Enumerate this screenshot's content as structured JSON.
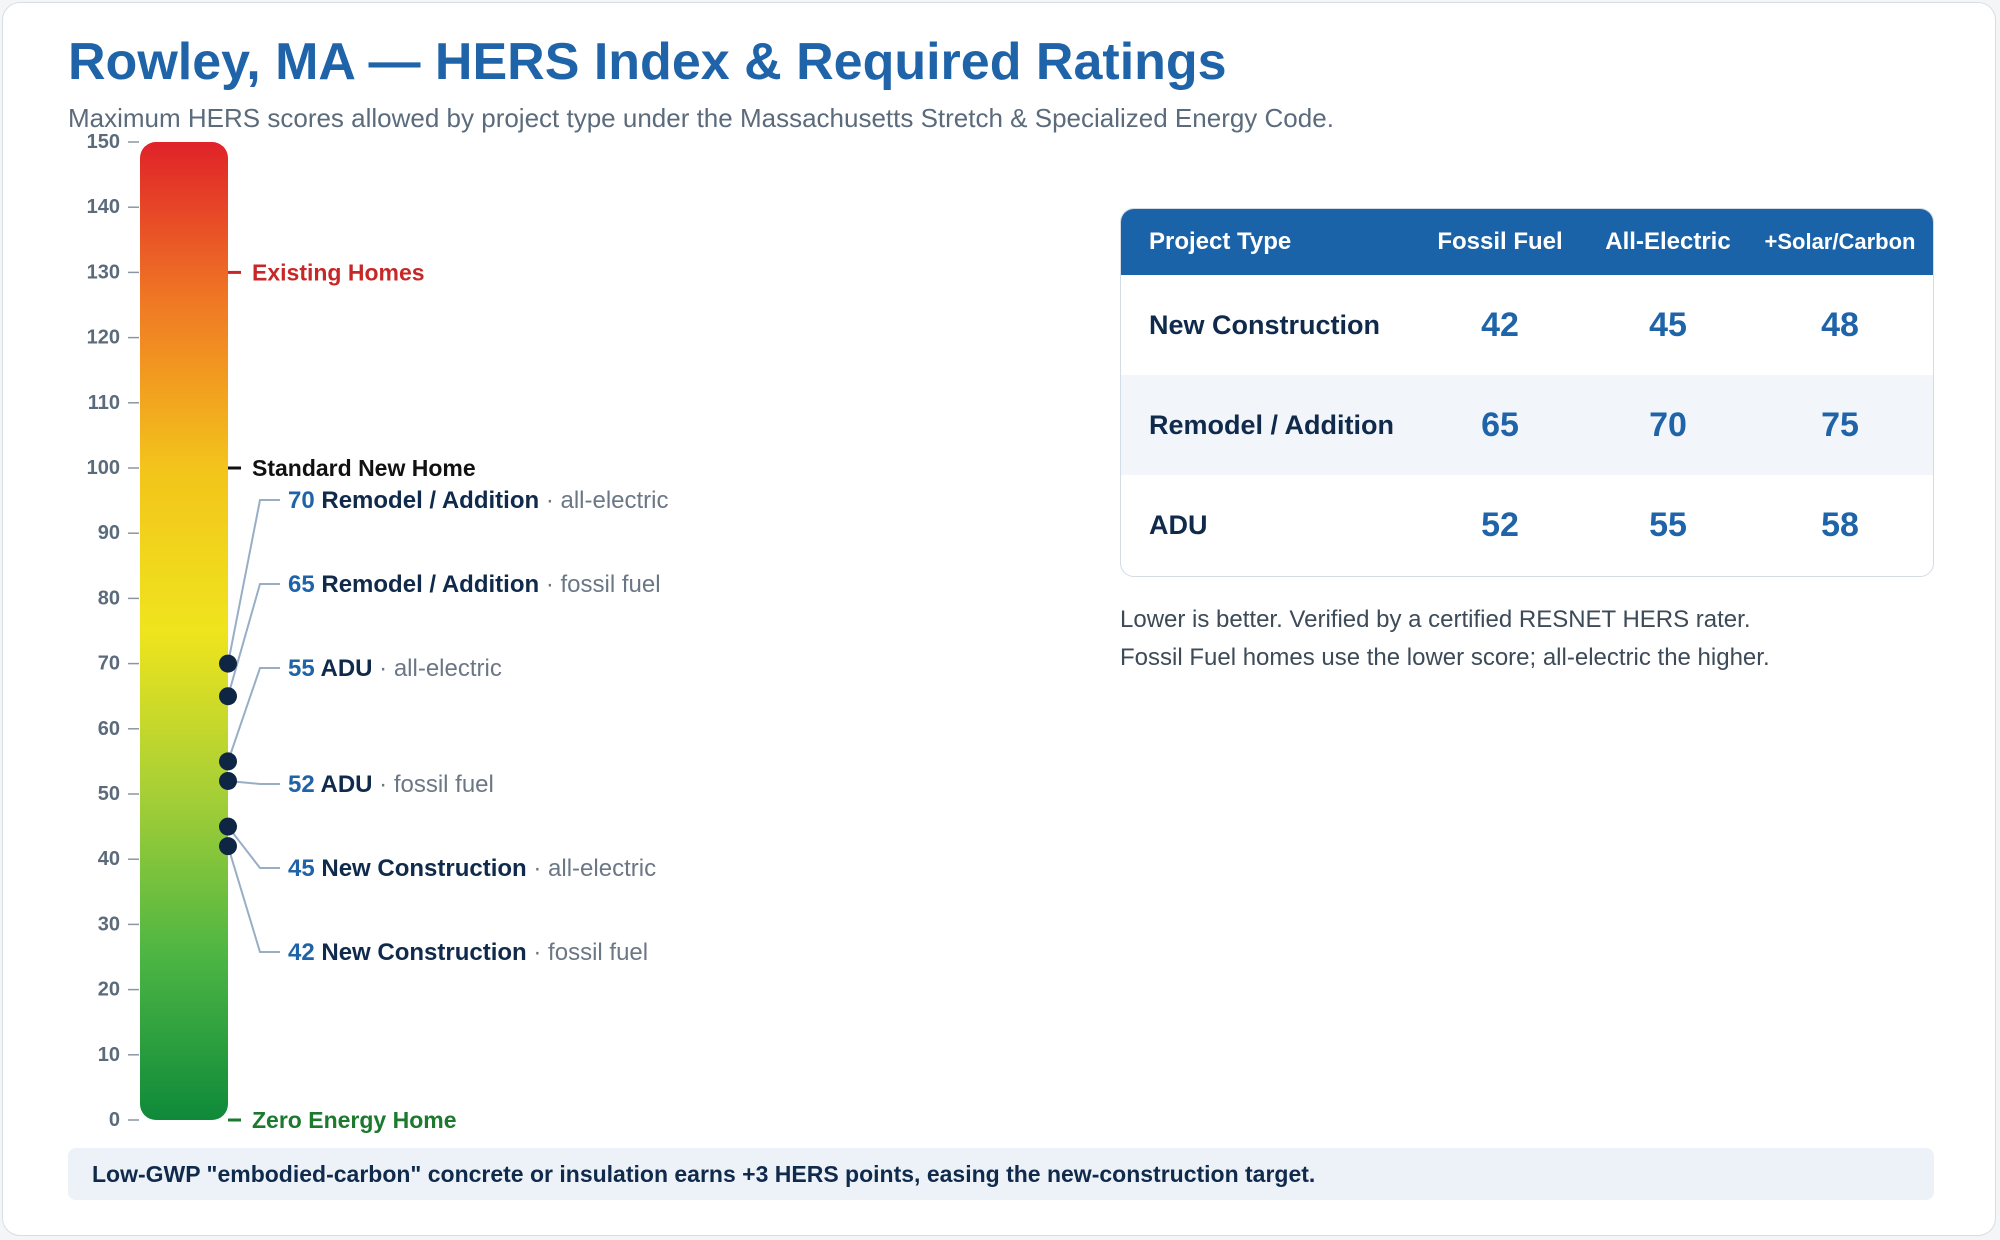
{
  "header": {
    "title": "Rowley, MA — HERS Index & Required Ratings",
    "subtitle": "Maximum HERS scores allowed by project type under the Massachusetts Stretch & Specialized Energy Code."
  },
  "chart_data": {
    "type": "scale",
    "axis": {
      "min": 0,
      "max": 150,
      "ticks": [
        0,
        10,
        20,
        30,
        40,
        50,
        60,
        70,
        80,
        90,
        100,
        110,
        120,
        130,
        140,
        150
      ]
    },
    "gradient_colors": [
      "#e02229",
      "#f07a24",
      "#f3c41b",
      "#efe41d",
      "#a6cf36",
      "#4cb543",
      "#0f8a3a"
    ],
    "reference_marks": [
      {
        "value": 130,
        "label": "Existing Homes",
        "color": "#c62828"
      },
      {
        "value": 100,
        "label": "Standard New Home",
        "color": "#111111"
      },
      {
        "value": 0,
        "label": "Zero Energy Home",
        "color": "#1b7a2e"
      }
    ],
    "points": [
      {
        "value": 70,
        "project": "Remodel / Addition",
        "fuel": "all-electric"
      },
      {
        "value": 65,
        "project": "Remodel / Addition",
        "fuel": "fossil fuel"
      },
      {
        "value": 55,
        "project": "ADU",
        "fuel": "all-electric"
      },
      {
        "value": 52,
        "project": "ADU",
        "fuel": "fossil fuel"
      },
      {
        "value": 45,
        "project": "New Construction",
        "fuel": "all-electric"
      },
      {
        "value": 42,
        "project": "New Construction",
        "fuel": "fossil fuel"
      }
    ]
  },
  "table": {
    "headers": [
      "Project Type",
      "Fossil Fuel",
      "All-Electric",
      "+Solar/Carbon"
    ],
    "rows": [
      {
        "type": "New Construction",
        "fossil": "42",
        "electric": "45",
        "solar": "48"
      },
      {
        "type": "Remodel / Addition",
        "fossil": "65",
        "electric": "70",
        "solar": "75"
      },
      {
        "type": "ADU",
        "fossil": "52",
        "electric": "55",
        "solar": "58"
      }
    ]
  },
  "notes": [
    "Lower is better. Verified by a certified RESNET HERS rater.",
    "Fossil Fuel homes use the lower score; all-electric the higher."
  ],
  "footer": "Low-GWP \"embodied-carbon\" concrete or insulation earns +3 HERS points, easing the new-construction target."
}
